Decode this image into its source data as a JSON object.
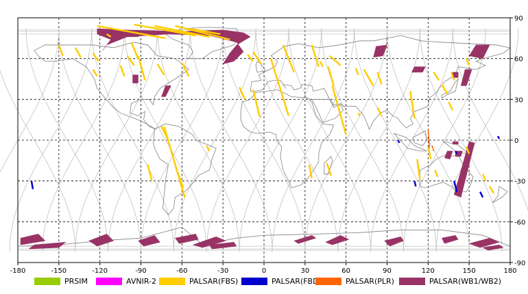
{
  "map": {
    "lon_ticks": [
      "-180",
      "-150",
      "-120",
      "-90",
      "-60",
      "-30",
      "0",
      "30",
      "60",
      "90",
      "120",
      "150",
      "180"
    ],
    "lat_ticks": [
      "90",
      "60",
      "30",
      "0",
      "-30",
      "-60",
      "-90"
    ],
    "land_color": "#ffffff",
    "coast_color": "#808080",
    "orbit_color": "#c0c0c0",
    "grid": "dashed-black"
  },
  "legend": [
    {
      "label": "PRSIM",
      "color": "#99cc00"
    },
    {
      "label": "AVNIR-2",
      "color": "#ff00ff"
    },
    {
      "label": "PALSAR(FBS)",
      "color": "#ffcc00"
    },
    {
      "label": "PALSAR(FBD)",
      "color": "#0000cc"
    },
    {
      "label": "PALSAR(PLR)",
      "color": "#ff6600"
    },
    {
      "label": "PALSAR(WB1/WB2)",
      "color": "#993366"
    }
  ]
}
